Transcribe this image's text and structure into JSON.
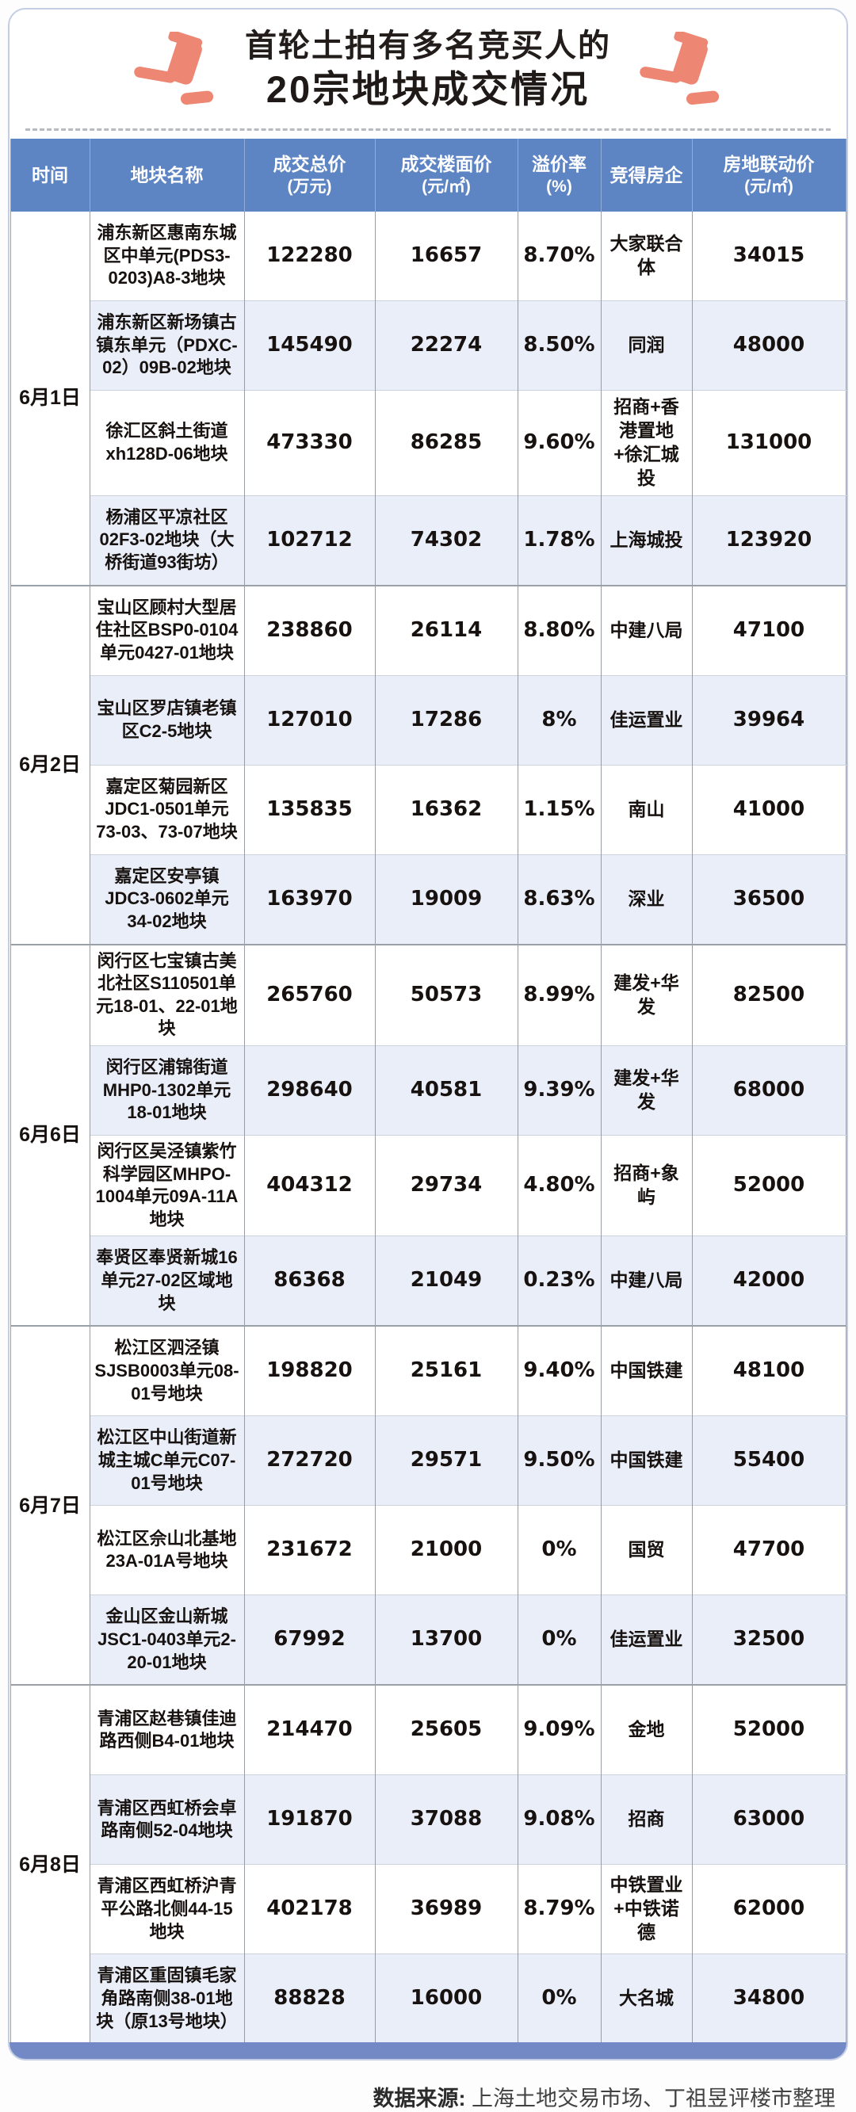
{
  "title": {
    "line1": "首轮土拍有多名竞买人的",
    "line2": "20宗地块成交情况"
  },
  "chart_data": {
    "type": "table",
    "title": "首轮土拍有多名竞买人的20宗地块成交情况",
    "columns": [
      {
        "label": "时间"
      },
      {
        "label": "地块名称"
      },
      {
        "label": "成交总价",
        "unit": "(万元)"
      },
      {
        "label": "成交楼面价",
        "unit": "(元/㎡)"
      },
      {
        "label": "溢价率",
        "unit": "(%)"
      },
      {
        "label": "竞得房企"
      },
      {
        "label": "房地联动价",
        "unit": "(元/㎡)"
      }
    ],
    "groups": [
      {
        "date": "6月1日",
        "rows": [
          {
            "name": "浦东新区惠南东城区中单元(PDS3-0203)A8-3地块",
            "total": "122280",
            "floor": "16657",
            "premium": "8.70%",
            "developer": "大家联合体",
            "linkage": "34015"
          },
          {
            "name": "浦东新区新场镇古镇东单元（PDXC-02）09B-02地块",
            "total": "145490",
            "floor": "22274",
            "premium": "8.50%",
            "developer": "同润",
            "linkage": "48000"
          },
          {
            "name": "徐汇区斜土街道xh128D-06地块",
            "total": "473330",
            "floor": "86285",
            "premium": "9.60%",
            "developer": "招商+香港置地+徐汇城投",
            "linkage": "131000"
          },
          {
            "name": "杨浦区平凉社区02F3-02地块（大桥街道93街坊）",
            "total": "102712",
            "floor": "74302",
            "premium": "1.78%",
            "developer": "上海城投",
            "linkage": "123920"
          }
        ]
      },
      {
        "date": "6月2日",
        "rows": [
          {
            "name": "宝山区顾村大型居住社区BSP0-0104单元0427-01地块",
            "total": "238860",
            "floor": "26114",
            "premium": "8.80%",
            "developer": "中建八局",
            "linkage": "47100"
          },
          {
            "name": "宝山区罗店镇老镇区C2-5地块",
            "total": "127010",
            "floor": "17286",
            "premium": "8%",
            "developer": "佳运置业",
            "linkage": "39964"
          },
          {
            "name": "嘉定区菊园新区JDC1-0501单元73-03、73-07地块",
            "total": "135835",
            "floor": "16362",
            "premium": "1.15%",
            "developer": "南山",
            "linkage": "41000"
          },
          {
            "name": "嘉定区安亭镇JDC3-0602单元34-02地块",
            "total": "163970",
            "floor": "19009",
            "premium": "8.63%",
            "developer": "深业",
            "linkage": "36500"
          }
        ]
      },
      {
        "date": "6月6日",
        "rows": [
          {
            "name": "闵行区七宝镇古美北社区S110501单元18-01、22-01地块",
            "total": "265760",
            "floor": "50573",
            "premium": "8.99%",
            "developer": "建发+华发",
            "linkage": "82500"
          },
          {
            "name": "闵行区浦锦街道MHP0-1302单元18-01地块",
            "total": "298640",
            "floor": "40581",
            "premium": "9.39%",
            "developer": "建发+华发",
            "linkage": "68000"
          },
          {
            "name": "闵行区吴泾镇紫竹科学园区MHPO-1004单元09A-11A地块",
            "total": "404312",
            "floor": "29734",
            "premium": "4.80%",
            "developer": "招商+象屿",
            "linkage": "52000"
          },
          {
            "name": "奉贤区奉贤新城16单元27-02区域地块",
            "total": "86368",
            "floor": "21049",
            "premium": "0.23%",
            "developer": "中建八局",
            "linkage": "42000"
          }
        ]
      },
      {
        "date": "6月7日",
        "rows": [
          {
            "name": "松江区泗泾镇SJSB0003单元08-01号地块",
            "total": "198820",
            "floor": "25161",
            "premium": "9.40%",
            "developer": "中国铁建",
            "linkage": "48100"
          },
          {
            "name": "松江区中山街道新城主城C单元C07-01号地块",
            "total": "272720",
            "floor": "29571",
            "premium": "9.50%",
            "developer": "中国铁建",
            "linkage": "55400"
          },
          {
            "name": "松江区佘山北基地23A-01A号地块",
            "total": "231672",
            "floor": "21000",
            "premium": "0%",
            "developer": "国贸",
            "linkage": "47700"
          },
          {
            "name": "金山区金山新城JSC1-0403单元2-20-01地块",
            "total": "67992",
            "floor": "13700",
            "premium": "0%",
            "developer": "佳运置业",
            "linkage": "32500"
          }
        ]
      },
      {
        "date": "6月8日",
        "rows": [
          {
            "name": "青浦区赵巷镇佳迪路西侧B4-01地块",
            "total": "214470",
            "floor": "25605",
            "premium": "9.09%",
            "developer": "金地",
            "linkage": "52000"
          },
          {
            "name": "青浦区西虹桥会卓路南侧52-04地块",
            "total": "191870",
            "floor": "37088",
            "premium": "9.08%",
            "developer": "招商",
            "linkage": "63000"
          },
          {
            "name": "青浦区西虹桥沪青平公路北侧44-15地块",
            "total": "402178",
            "floor": "36989",
            "premium": "8.79%",
            "developer": "中铁置业+中铁诺德",
            "linkage": "62000"
          },
          {
            "name": "青浦区重固镇毛家角路南侧38-01地块（原13号地块）",
            "total": "88828",
            "floor": "16000",
            "premium": "0%",
            "developer": "大名城",
            "linkage": "34800"
          }
        ]
      }
    ]
  },
  "footer": {
    "source_label": "数据来源:",
    "source_text": "上海土地交易市场、丁祖昱评楼市整理"
  },
  "colors": {
    "header_blue": "#5d84c3",
    "stripe_blue": "#e9eef9",
    "bottom_bar_blue": "#7289c6",
    "gavel_salmon": "#ed8672",
    "title_black": "#1f1a17",
    "border_gray": "#9aa0a8",
    "card_border": "#c3cde3"
  }
}
